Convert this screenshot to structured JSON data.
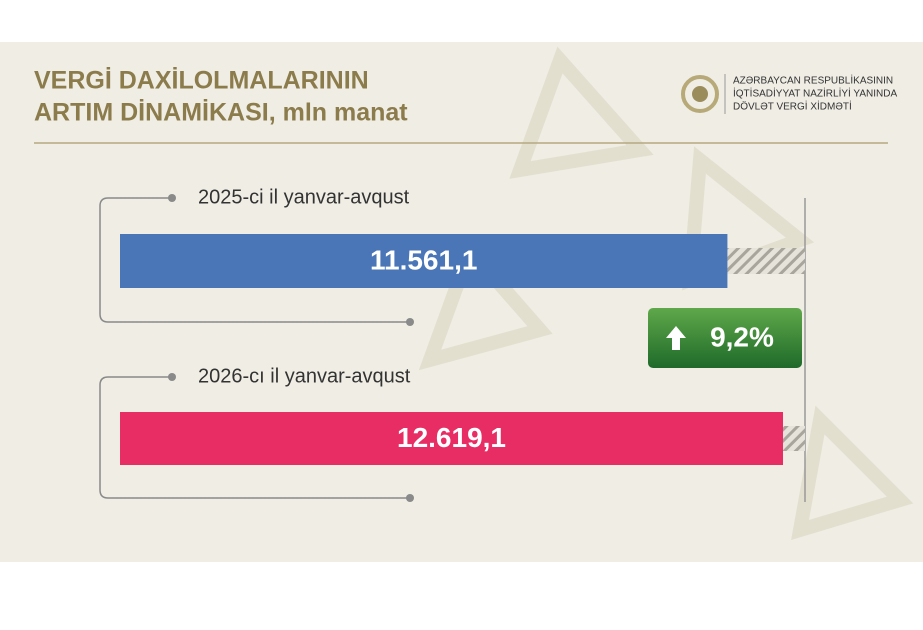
{
  "chart_data": {
    "type": "bar",
    "title": [
      "VERGİ DAXİLOLMALARININ",
      "ARTIM DİNAMİKASI, mln manat"
    ],
    "organization": [
      "AZƏRBAYCAN RESPUBLİKASININ",
      "İQTİSADİYYAT NAZİRLİYİ YANINDA",
      "DÖVLƏT VERGİ XİDMƏTİ"
    ],
    "categories": [
      "2025-ci il yanvar-avqust",
      "2026-cı il yanvar-avqust"
    ],
    "values": [
      11561.1,
      12619.1
    ],
    "value_labels": [
      "11.561,1",
      "12.619,1"
    ],
    "colors": [
      "#4a76b8",
      "#e82d64"
    ],
    "annotations": [
      "9,2%"
    ]
  }
}
